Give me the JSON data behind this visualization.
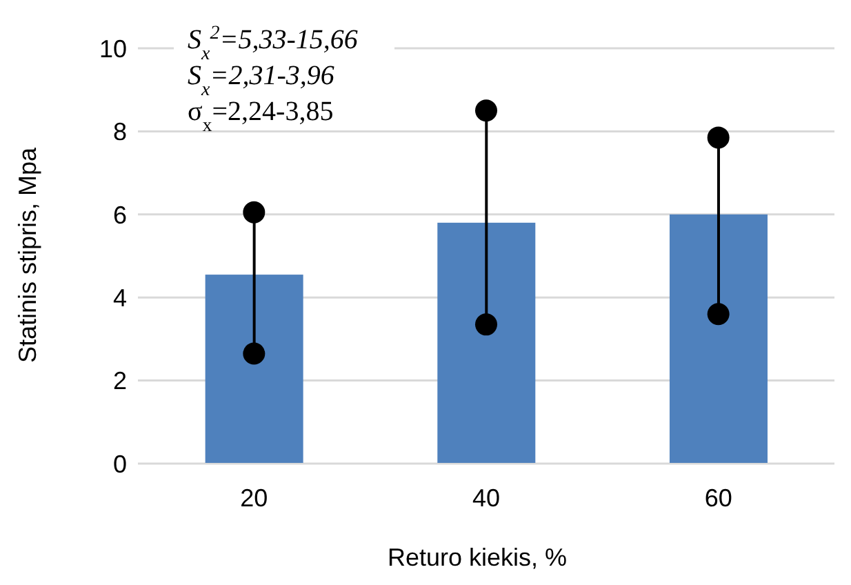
{
  "chart_data": {
    "type": "bar",
    "xlabel": "Returo kiekis, %",
    "ylabel": "Statinis stipris, Mpa",
    "categories": [
      "20",
      "40",
      "60"
    ],
    "series": [
      {
        "color": "#4f81bd",
        "values": [
          4.55,
          5.8,
          6.0
        ]
      },
      {
        "type": "scatter",
        "color": "#000000",
        "x": [
          "20",
          "40",
          "60"
        ],
        "values": [
          2.65,
          3.35,
          3.6
        ]
      },
      {
        "type": "scatter",
        "color": "#000000",
        "x": [
          "20",
          "40",
          "60"
        ],
        "values": [
          6.05,
          8.5,
          7.85
        ]
      }
    ],
    "marker": "circle",
    "ylim": [
      0,
      10
    ],
    "yticks": [
      0,
      2,
      4,
      6,
      8,
      10
    ],
    "grid": "y",
    "annotations": [
      "S$_{x}$$^{2}$=5,33-15,66",
      "S$_{x}$=2,31-3,96",
      "σ$_{x}$=2,24-3,85"
    ]
  }
}
